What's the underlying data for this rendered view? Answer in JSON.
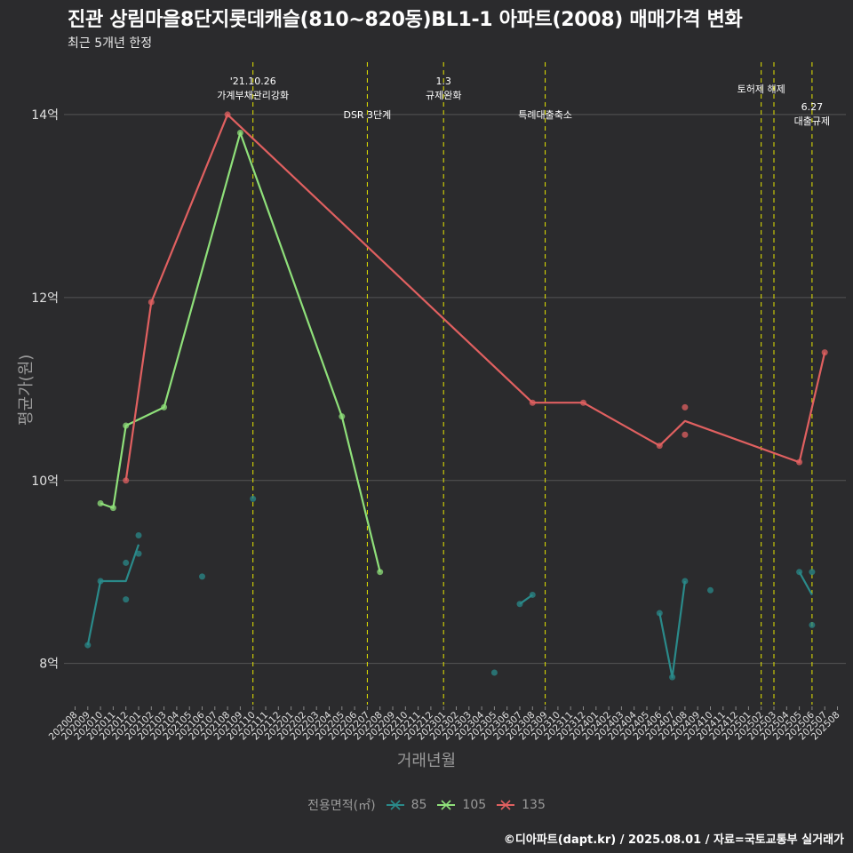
{
  "title": "진관 상림마을8단지롯데캐슬(810~820동)BL1-1 아파트(2008) 매매가격 변화",
  "subtitle": "최근 5개년 한정",
  "footer": "©디아파트(dapt.kr) / 2025.08.01 / 자료=국토교통부 실거래가",
  "legend": {
    "title": "전용면적(㎡)",
    "items": [
      {
        "label": "85",
        "color": "#2a8a8a"
      },
      {
        "label": "105",
        "color": "#8fe07a"
      },
      {
        "label": "135",
        "color": "#e06060"
      }
    ]
  },
  "chart_data": {
    "type": "line",
    "xlabel": "거래년월",
    "ylabel": "평균가(원)",
    "ylim": [
      7.55,
      14.65
    ],
    "yticks": [
      8,
      10,
      12,
      14
    ],
    "ytick_labels": [
      "8억",
      "10억",
      "12억",
      "14억"
    ],
    "grid": true,
    "legend_position": "bottom",
    "x_categories": [
      "202008",
      "202009",
      "202010",
      "202011",
      "202012",
      "202101",
      "202102",
      "202103",
      "202104",
      "202105",
      "202106",
      "202107",
      "202108",
      "202109",
      "202110",
      "202111",
      "202112",
      "202201",
      "202202",
      "202203",
      "202204",
      "202205",
      "202206",
      "202207",
      "202208",
      "202209",
      "202210",
      "202211",
      "202212",
      "202301",
      "202302",
      "202303",
      "202304",
      "202305",
      "202306",
      "202307",
      "202308",
      "202309",
      "202310",
      "202311",
      "202312",
      "202401",
      "202402",
      "202403",
      "202404",
      "202405",
      "202406",
      "202407",
      "202408",
      "202409",
      "202410",
      "202411",
      "202412",
      "202501",
      "202502",
      "202503",
      "202504",
      "202505",
      "202506",
      "202507",
      "202508"
    ],
    "events": [
      {
        "x": "202110",
        "label": "'21.10.26\n가계부채관리강화",
        "level": "upper"
      },
      {
        "x": "202207",
        "label": "DSR 3단계",
        "level": "lower"
      },
      {
        "x": "202301",
        "label": "1.3\n규제완화",
        "level": "upper"
      },
      {
        "x": "202309",
        "label": "특례대출축소",
        "level": "lower"
      },
      {
        "x": "202502",
        "label": "토허제 해제",
        "level": "upper"
      },
      {
        "x": "202503",
        "label": "",
        "level": "upper"
      },
      {
        "x": "202506",
        "label": "6.27\n대출규제",
        "level": "lower"
      }
    ],
    "series": [
      {
        "name": "85",
        "color": "#2a8a8a",
        "line": [
          [
            "202009",
            8.2
          ],
          [
            "202010",
            8.9
          ],
          [
            "202012",
            8.9
          ],
          [
            "202101",
            9.3
          ],
          null,
          [
            "202307",
            8.65
          ],
          [
            "202308",
            8.75
          ],
          null,
          [
            "202406",
            8.55
          ],
          [
            "202407",
            7.85
          ],
          [
            "202408",
            8.9
          ],
          null,
          [
            "202505",
            9.0
          ],
          [
            "202506",
            8.75
          ]
        ],
        "points": [
          [
            "202009",
            8.2
          ],
          [
            "202010",
            8.9
          ],
          [
            "202012",
            9.1
          ],
          [
            "202012",
            8.7
          ],
          [
            "202101",
            9.2
          ],
          [
            "202101",
            9.4
          ],
          [
            "202106",
            8.95
          ],
          [
            "202110",
            9.8
          ],
          [
            "202305",
            7.9
          ],
          [
            "202307",
            8.65
          ],
          [
            "202308",
            8.75
          ],
          [
            "202406",
            8.55
          ],
          [
            "202407",
            7.85
          ],
          [
            "202408",
            8.9
          ],
          [
            "202410",
            8.8
          ],
          [
            "202505",
            9.0
          ],
          [
            "202506",
            9.0
          ],
          [
            "202506",
            8.42
          ]
        ]
      },
      {
        "name": "105",
        "color": "#8fe07a",
        "line": [
          [
            "202010",
            9.75
          ],
          [
            "202011",
            9.7
          ],
          [
            "202012",
            10.6
          ],
          [
            "202103",
            10.8
          ],
          [
            "202109",
            13.8
          ],
          [
            "202205",
            10.7
          ],
          [
            "202208",
            9.0
          ]
        ],
        "points": [
          [
            "202010",
            9.75
          ],
          [
            "202011",
            9.7
          ],
          [
            "202012",
            10.6
          ],
          [
            "202103",
            10.8
          ],
          [
            "202109",
            13.8
          ],
          [
            "202205",
            10.7
          ],
          [
            "202208",
            9.0
          ]
        ]
      },
      {
        "name": "135",
        "color": "#e06060",
        "line": [
          [
            "202012",
            10.0
          ],
          [
            "202102",
            11.95
          ],
          [
            "202108",
            14.0
          ],
          [
            "202308",
            10.85
          ],
          [
            "202312",
            10.85
          ],
          [
            "202406",
            10.38
          ],
          [
            "202408",
            10.65
          ],
          [
            "202505",
            10.2
          ],
          [
            "202507",
            11.4
          ]
        ],
        "points": [
          [
            "202012",
            10.0
          ],
          [
            "202102",
            11.95
          ],
          [
            "202108",
            14.0
          ],
          [
            "202308",
            10.85
          ],
          [
            "202312",
            10.85
          ],
          [
            "202406",
            10.38
          ],
          [
            "202408",
            10.8
          ],
          [
            "202408",
            10.5
          ],
          [
            "202505",
            10.2
          ],
          [
            "202507",
            11.4
          ]
        ]
      }
    ]
  }
}
